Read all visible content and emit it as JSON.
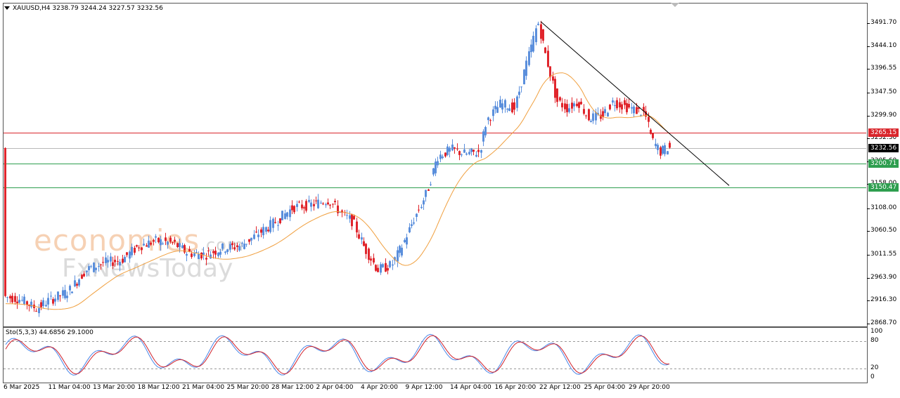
{
  "header": {
    "symbol_line": "XAUUSD,H4  3238.79 3244.24 3227.57 3232.56"
  },
  "watermark": {
    "brand_top": "economies",
    "brand_top_suffix": ".com",
    "brand_bottom": "FxNewsToday"
  },
  "price_axis": {
    "ticks": [
      "3491.70",
      "3444.10",
      "3396.55",
      "3347.50",
      "3299.90",
      "3252.30",
      "3205.60",
      "3158.00",
      "3108.00",
      "3060.50",
      "3011.55",
      "2963.90",
      "2916.30",
      "2868.70"
    ],
    "ymin": 2868.7,
    "ymax": 3491.7
  },
  "levels": {
    "resistance": {
      "label": "3265.15",
      "value": 3265.15,
      "color": "#d9262c"
    },
    "current": {
      "label": "3232.56",
      "value": 3232.56,
      "color": "#000000"
    },
    "support1": {
      "label": "3200.71",
      "value": 3200.71,
      "color": "#2e9e4f"
    },
    "support2": {
      "label": "3150.47",
      "value": 3150.47,
      "color": "#2e9e4f"
    }
  },
  "oscillator": {
    "label": "Sto(5,3,3) 44.6856 29.1000",
    "ticks": [
      "100",
      "80",
      "20",
      "0"
    ],
    "upper_level": 80,
    "lower_level": 20
  },
  "time_axis": {
    "labels": [
      "6 Mar 2025",
      "11 Mar 04:00",
      "13 Mar 20:00",
      "18 Mar 12:00",
      "21 Mar 04:00",
      "25 Mar 20:00",
      "28 Mar 12:00",
      "2 Apr 04:00",
      "4 Apr 20:00",
      "9 Apr 12:00",
      "14 Apr 04:00",
      "16 Apr 20:00",
      "22 Apr 12:00",
      "25 Apr 04:00",
      "29 Apr 20:00"
    ]
  },
  "colors": {
    "bull": "#5b8fdc",
    "bear": "#e0252c",
    "ma": "#f0a040",
    "trendline": "#000000",
    "stoch_main": "#4a86e8",
    "stoch_signal": "#d0202a"
  },
  "chart_data": {
    "type": "line",
    "title": "XAUUSD,H4",
    "ohlc": {
      "open": 3238.79,
      "high": 3244.24,
      "low": 3227.57,
      "close": 3232.56
    },
    "x": [
      "6 Mar 2025",
      "11 Mar 04:00",
      "13 Mar 20:00",
      "18 Mar 12:00",
      "21 Mar 04:00",
      "25 Mar 20:00",
      "28 Mar 12:00",
      "2 Apr 04:00",
      "4 Apr 20:00",
      "9 Apr 12:00",
      "14 Apr 04:00",
      "16 Apr 20:00",
      "22 Apr 12:00",
      "25 Apr 04:00",
      "29 Apr 20:00"
    ],
    "series": [
      {
        "name": "",
        "values": [
          2918,
          2905,
          2965,
          3020,
          3028,
          3030,
          3085,
          3115,
          2985,
          3105,
          3220,
          3320,
          3390,
          3310,
          3300
        ]
      },
      {
        "name": "",
        "values": [
          2900,
          2905,
          2930,
          2975,
          3015,
          3030,
          3050,
          3080,
          3090,
          3095,
          3140,
          3175,
          3270,
          3335,
          3330
        ]
      }
    ],
    "ylim": [
      2868.7,
      3491.7
    ]
  }
}
